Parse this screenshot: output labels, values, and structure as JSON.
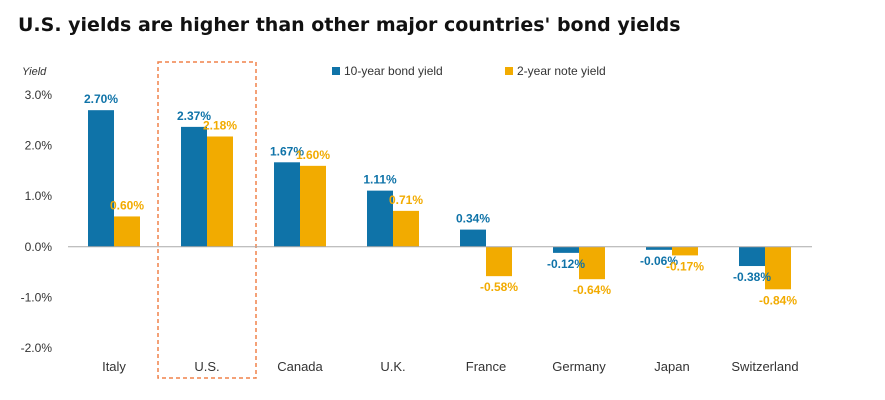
{
  "chart_data": {
    "type": "bar",
    "title": "U.S. yields are higher than other major countries' bond yields",
    "ylabel": "Yield",
    "xlabel": "",
    "ylim": [
      -2.0,
      3.0
    ],
    "yticks": [
      "3.0%",
      "2.0%",
      "1.0%",
      "0.0%",
      "-1.0%",
      "-2.0%"
    ],
    "ytick_values": [
      3.0,
      2.0,
      1.0,
      0.0,
      -1.0,
      -2.0
    ],
    "categories": [
      "Italy",
      "U.S.",
      "Canada",
      "U.K.",
      "France",
      "Germany",
      "Japan",
      "Switzerland"
    ],
    "series": [
      {
        "name": "10-year bond yield",
        "color": "#0f73a8",
        "values": [
          2.7,
          2.37,
          1.67,
          1.11,
          0.34,
          -0.12,
          -0.06,
          -0.38
        ],
        "labels": [
          "2.70%",
          "2.37%",
          "1.67%",
          "1.11%",
          "0.34%",
          "-0.12%",
          "-0.06%",
          "-0.38%"
        ]
      },
      {
        "name": "2-year note yield",
        "color": "#f2ab00",
        "values": [
          0.6,
          2.18,
          1.6,
          0.71,
          -0.58,
          -0.64,
          -0.17,
          -0.84
        ],
        "labels": [
          "0.60%",
          "2.18%",
          "1.60%",
          "0.71%",
          "-0.58%",
          "-0.64%",
          "-0.17%",
          "-0.84%"
        ]
      }
    ],
    "grid": false,
    "legend": "top-center",
    "highlight_category": "U.S.",
    "highlight_color": "#f0824a"
  }
}
